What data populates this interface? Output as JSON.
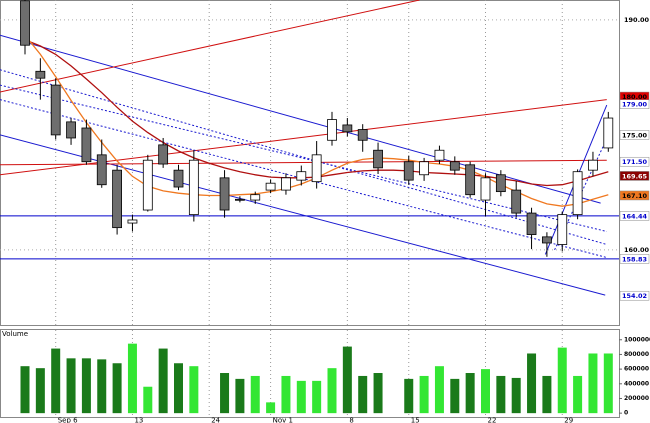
{
  "chart_data": [
    {
      "type": "candlestick",
      "categories": [
        null,
        null,
        "Sep 6",
        null,
        null,
        null,
        null,
        "13",
        null,
        null,
        null,
        null,
        "24",
        null,
        null,
        null,
        "Nov 1",
        null,
        null,
        null,
        null,
        "8",
        null,
        null,
        null,
        "15",
        null,
        null,
        null,
        null,
        "22",
        null,
        null,
        null,
        null,
        "29",
        null,
        null,
        null
      ],
      "open": [
        192.5,
        183.3,
        181.5,
        176.7,
        175.9,
        172.4,
        170.4,
        163.5,
        165.2,
        173.7,
        170.4,
        164.6,
        null,
        169.4,
        166.6,
        166.5,
        167.8,
        167.8,
        169.1,
        168.9,
        174.3,
        176.3,
        175.7,
        173.0,
        null,
        171.5,
        169.8,
        171.7,
        171.5,
        171.1,
        166.5,
        169.8,
        167.8,
        164.8,
        161.7,
        160.7,
        164.6,
        170.4,
        173.3
      ],
      "high": [
        192.6,
        185.0,
        182.4,
        177.2,
        177.0,
        174.4,
        171.1,
        164.6,
        172.4,
        174.6,
        171.1,
        173.0,
        null,
        170.4,
        167.0,
        167.6,
        169.2,
        170.0,
        171.0,
        174.2,
        178.0,
        177.2,
        176.4,
        174.0,
        null,
        172.3,
        172.0,
        173.6,
        172.2,
        171.5,
        170.0,
        170.4,
        169.0,
        165.5,
        162.3,
        165.0,
        170.5,
        172.8,
        178.0
      ],
      "low": [
        185.5,
        179.6,
        174.4,
        173.7,
        171.1,
        168.1,
        162.0,
        162.4,
        165.0,
        170.7,
        167.8,
        163.7,
        null,
        164.2,
        166.2,
        166.0,
        167.4,
        167.2,
        168.4,
        168.0,
        173.6,
        174.8,
        172.8,
        169.9,
        null,
        168.5,
        169.0,
        171.2,
        169.8,
        166.8,
        164.4,
        167.0,
        164.2,
        160.1,
        159.1,
        159.8,
        164.0,
        169.6,
        172.8
      ],
      "close": [
        186.7,
        182.4,
        175.0,
        174.6,
        171.5,
        168.5,
        162.9,
        163.9,
        171.7,
        171.2,
        168.2,
        171.7,
        null,
        165.2,
        166.5,
        167.2,
        168.7,
        169.4,
        170.2,
        172.4,
        177.0,
        175.4,
        174.3,
        170.7,
        null,
        169.1,
        171.5,
        173.0,
        170.4,
        167.2,
        169.4,
        167.6,
        164.8,
        162.0,
        160.9,
        164.6,
        170.2,
        171.7,
        177.2
      ],
      "up_color": "#ffffff",
      "down_color": "#6e6e6e",
      "series": [
        {
          "color": "#b01010",
          "values": [
            187.4,
            186.6,
            185.5,
            184.0,
            182.3,
            180.5,
            178.6,
            176.8,
            175.3,
            174.0,
            172.9,
            172.0,
            171.3,
            170.7,
            170.2,
            169.8,
            169.5,
            169.4,
            169.4,
            169.5,
            169.8,
            170.1,
            170.3,
            170.4,
            170.4,
            170.3,
            170.1,
            170.0,
            169.9,
            169.8,
            169.6,
            169.3,
            169.0,
            168.6,
            168.4,
            168.5,
            169.0,
            169.6,
            170.2
          ]
        },
        {
          "color": "#f07820",
          "values": [
            188.0,
            185.5,
            182.6,
            179.5,
            176.6,
            174.0,
            171.6,
            169.6,
            168.3,
            167.7,
            167.4,
            167.2,
            167.1,
            167.1,
            167.2,
            167.3,
            167.6,
            168.0,
            168.6,
            169.4,
            170.4,
            171.3,
            171.8,
            172.0,
            171.9,
            171.7,
            171.4,
            171.2,
            170.9,
            170.4,
            169.5,
            168.5,
            167.6,
            166.7,
            166.0,
            165.7,
            166.0,
            166.6,
            167.2
          ]
        }
      ],
      "lines": [
        {
          "color": "#1a1ad0",
          "dashed": false,
          "x": [
            -1.63,
            37.5
          ],
          "y": [
            188.0,
            166.1
          ]
        },
        {
          "color": "#1a1ad0",
          "dashed": false,
          "x": [
            -1.63,
            37.8
          ],
          "y": [
            175.0,
            154.1
          ]
        },
        {
          "color": "#d01010",
          "dashed": false,
          "x": [
            -1.63,
            25.7
          ],
          "y": [
            180.6,
            192.6
          ]
        },
        {
          "color": "#d01010",
          "dashed": false,
          "x": [
            -1.63,
            37.9
          ],
          "y": [
            169.8,
            179.6
          ]
        },
        {
          "color": "#d01010",
          "dashed": false,
          "x": [
            -1.63,
            37.9
          ],
          "y": [
            171.1,
            171.7
          ]
        },
        {
          "color": "#1a1ad0",
          "dashed": true,
          "x": [
            -1.63,
            37.9
          ],
          "y": [
            183.5,
            160.7
          ]
        },
        {
          "color": "#1a1ad0",
          "dashed": true,
          "x": [
            -1.63,
            37.9
          ],
          "y": [
            181.5,
            162.4
          ]
        },
        {
          "color": "#1a1ad0",
          "dashed": true,
          "x": [
            -1.63,
            37.9
          ],
          "y": [
            179.6,
            159.0
          ]
        },
        {
          "color": "#1a1ad0",
          "dashed": false,
          "x": [
            33.9,
            37.9
          ],
          "y": [
            159.4,
            178.9
          ]
        },
        {
          "color": "#1a1ad0",
          "dashed": true,
          "x": [
            34.5,
            37.9
          ],
          "y": [
            160.0,
            174.5
          ]
        }
      ],
      "ylim": [
        150.2,
        192.6
      ],
      "yticks": [
        {
          "value": 190,
          "label": "190.00"
        },
        {
          "value": 160,
          "label": "160.00"
        }
      ],
      "levels": [
        {
          "value": 180,
          "label": "180.00",
          "bg": "#e00000",
          "fg": "#000000",
          "line": false
        },
        {
          "value": 179,
          "label": "179.00",
          "bg": "#ffffff",
          "fg": "#0000cc",
          "line": false
        },
        {
          "value": 175,
          "label": "175.00",
          "bg": "#ffffff",
          "fg": "#000000",
          "line": false
        },
        {
          "value": 171.5,
          "label": "171.50",
          "bg": "#ffffff",
          "fg": "#0000cc",
          "line": false
        },
        {
          "value": 169.65,
          "label": "169.65",
          "bg": "#8b0000",
          "fg": "#ffffff",
          "line": false
        },
        {
          "value": 167.1,
          "label": "167.10",
          "bg": "#f07820",
          "fg": "#000000",
          "line": false
        },
        {
          "value": 164.44,
          "label": "164.44",
          "bg": "#ffffff",
          "fg": "#0000cc",
          "line": true
        },
        {
          "value": 158.83,
          "label": "158.83",
          "bg": "#ffffff",
          "fg": "#0000cc",
          "line": true
        },
        {
          "value": 154.02,
          "label": "154.02",
          "bg": "#ffffff",
          "fg": "#0000cc",
          "line": false
        }
      ]
    },
    {
      "type": "bar",
      "title": "Volume",
      "values": [
        640000,
        613000,
        880000,
        747000,
        747000,
        733000,
        680000,
        947000,
        360000,
        880000,
        680000,
        640000,
        null,
        547000,
        467000,
        507000,
        147000,
        507000,
        440000,
        440000,
        613000,
        907000,
        507000,
        547000,
        null,
        467000,
        507000,
        640000,
        467000,
        547000,
        600000,
        507000,
        480000,
        813000,
        507000,
        893000,
        507000,
        813000,
        813000
      ],
      "up_color": "#33e633",
      "down_color": "#1a7a1a",
      "ylim": [
        -66000,
        1133000
      ],
      "yticks": [
        0,
        200000,
        400000,
        600000,
        800000,
        1000000
      ]
    }
  ]
}
